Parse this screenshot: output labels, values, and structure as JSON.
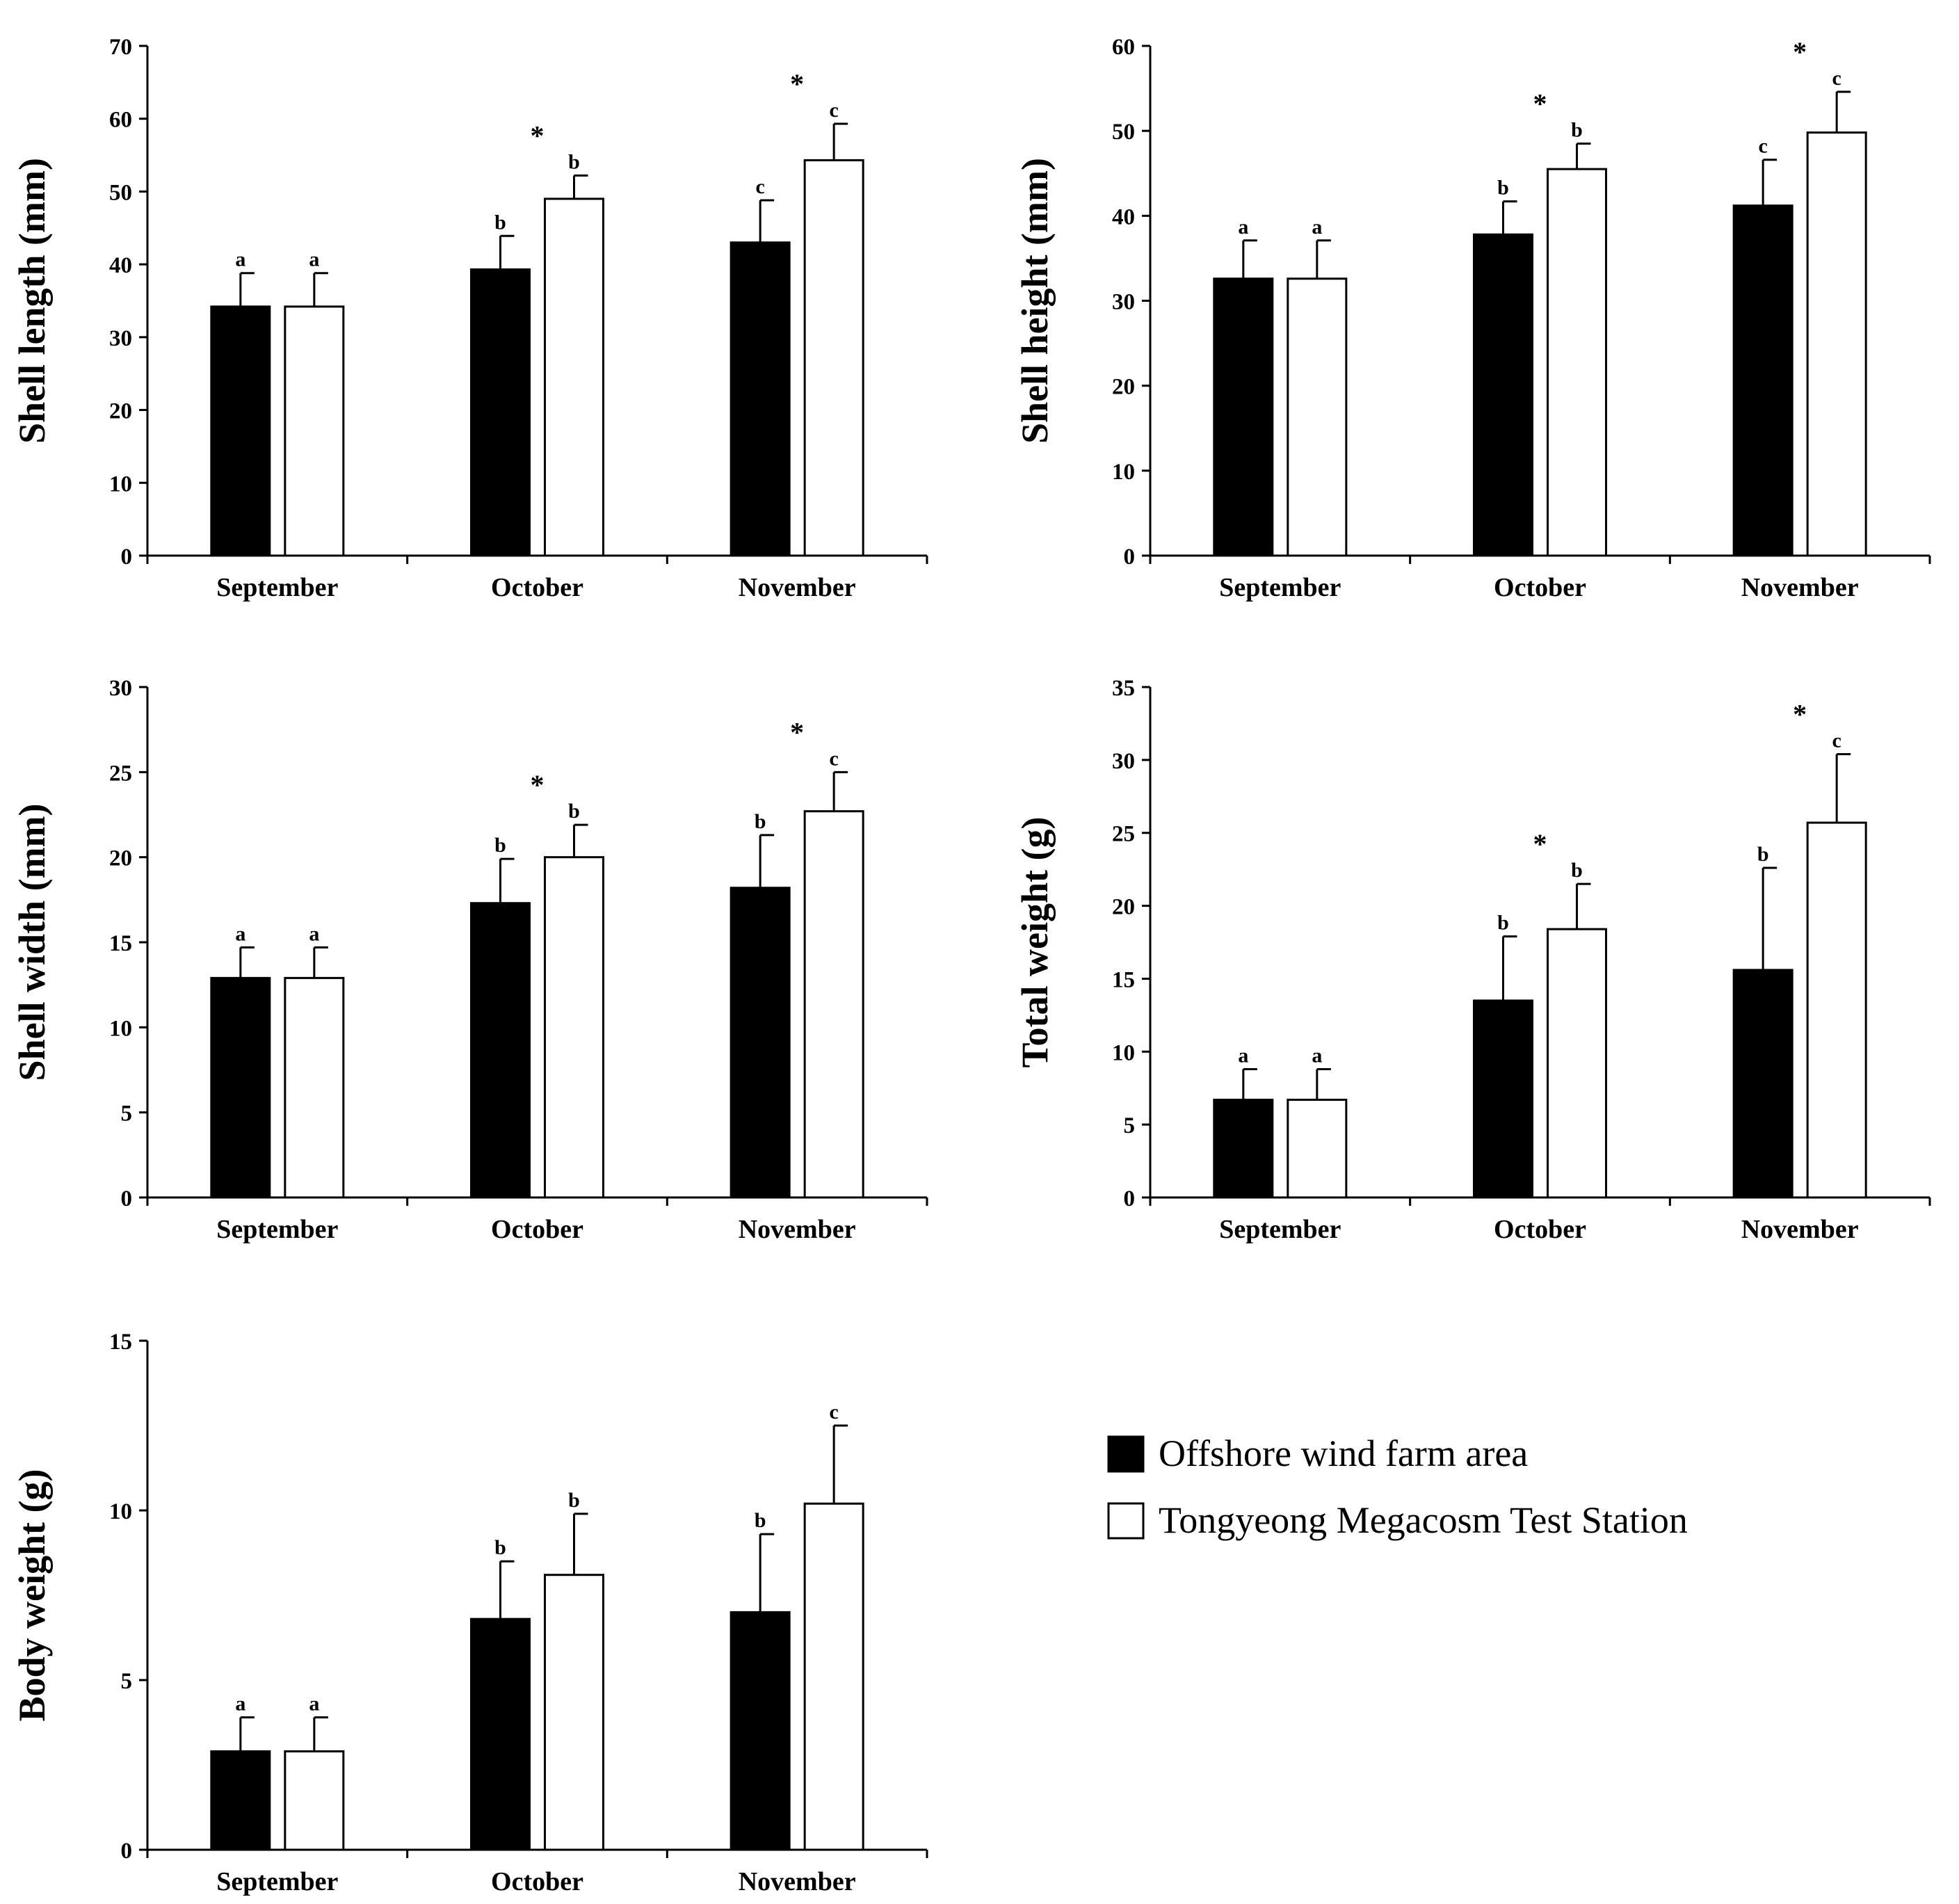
{
  "legend": {
    "items": [
      {
        "label": "Offshore wind farm area",
        "fill": "#000000"
      },
      {
        "label": "Tongyeong Megacosm Test Station",
        "fill": "#ffffff"
      }
    ]
  },
  "chart_data": [
    {
      "type": "bar",
      "ylabel": "Shell length (mm)",
      "categories": [
        "September",
        "October",
        "November"
      ],
      "ylim": [
        0,
        70
      ],
      "ystep": 10,
      "grid": false,
      "series": [
        {
          "name": "Offshore wind farm area",
          "values": [
            34.2,
            39.3,
            43.0
          ],
          "errors": [
            4.6,
            4.6,
            5.8
          ],
          "letters": [
            "a",
            "b",
            "c"
          ]
        },
        {
          "name": "Tongyeong Megacosm Test Station",
          "values": [
            34.2,
            49.0,
            54.3
          ],
          "errors": [
            4.6,
            3.2,
            5.0
          ],
          "letters": [
            "a",
            "b",
            "c"
          ]
        }
      ],
      "significance": [
        "",
        "*",
        "*"
      ]
    },
    {
      "type": "bar",
      "ylabel": "Shell height (mm)",
      "categories": [
        "September",
        "October",
        "November"
      ],
      "ylim": [
        0,
        60
      ],
      "ystep": 10,
      "grid": false,
      "series": [
        {
          "name": "Offshore wind farm area",
          "values": [
            32.6,
            37.8,
            41.2
          ],
          "errors": [
            4.5,
            3.9,
            5.4
          ],
          "letters": [
            "a",
            "b",
            "c"
          ]
        },
        {
          "name": "Tongyeong Megacosm Test Station",
          "values": [
            32.6,
            45.5,
            49.8
          ],
          "errors": [
            4.5,
            3.0,
            4.8
          ],
          "letters": [
            "a",
            "b",
            "c"
          ]
        }
      ],
      "significance": [
        "",
        "*",
        "*"
      ]
    },
    {
      "type": "bar",
      "ylabel": "Shell width (mm)",
      "categories": [
        "September",
        "October",
        "November"
      ],
      "ylim": [
        0,
        30
      ],
      "ystep": 5,
      "grid": false,
      "series": [
        {
          "name": "Offshore wind farm area",
          "values": [
            12.9,
            17.3,
            18.2
          ],
          "errors": [
            1.8,
            2.6,
            3.1
          ],
          "letters": [
            "a",
            "b",
            "b"
          ]
        },
        {
          "name": "Tongyeong Megacosm Test Station",
          "values": [
            12.9,
            20.0,
            22.7
          ],
          "errors": [
            1.8,
            1.9,
            2.3
          ],
          "letters": [
            "a",
            "b",
            "c"
          ]
        }
      ],
      "significance": [
        "",
        "*",
        "*"
      ]
    },
    {
      "type": "bar",
      "ylabel": "Total weight (g)",
      "categories": [
        "September",
        "October",
        "November"
      ],
      "ylim": [
        0,
        35
      ],
      "ystep": 5,
      "grid": false,
      "series": [
        {
          "name": "Offshore wind farm area",
          "values": [
            6.7,
            13.5,
            15.6
          ],
          "errors": [
            2.1,
            4.4,
            7.0
          ],
          "letters": [
            "a",
            "b",
            "b"
          ]
        },
        {
          "name": "Tongyeong Megacosm Test Station",
          "values": [
            6.7,
            18.4,
            25.7
          ],
          "errors": [
            2.1,
            3.1,
            4.7
          ],
          "letters": [
            "a",
            "b",
            "c"
          ]
        }
      ],
      "significance": [
        "",
        "*",
        "*"
      ]
    },
    {
      "type": "bar",
      "ylabel": "Body weight (g)",
      "categories": [
        "September",
        "October",
        "November"
      ],
      "ylim": [
        0,
        15
      ],
      "ystep": 5,
      "grid": false,
      "series": [
        {
          "name": "Offshore wind farm area",
          "values": [
            2.9,
            6.8,
            7.0
          ],
          "errors": [
            1.0,
            1.7,
            2.3
          ],
          "letters": [
            "a",
            "b",
            "b"
          ]
        },
        {
          "name": "Tongyeong Megacosm Test Station",
          "values": [
            2.9,
            8.1,
            10.2
          ],
          "errors": [
            1.0,
            1.8,
            2.3
          ],
          "letters": [
            "a",
            "b",
            "c"
          ]
        }
      ],
      "significance": [
        "",
        "",
        ""
      ]
    }
  ]
}
